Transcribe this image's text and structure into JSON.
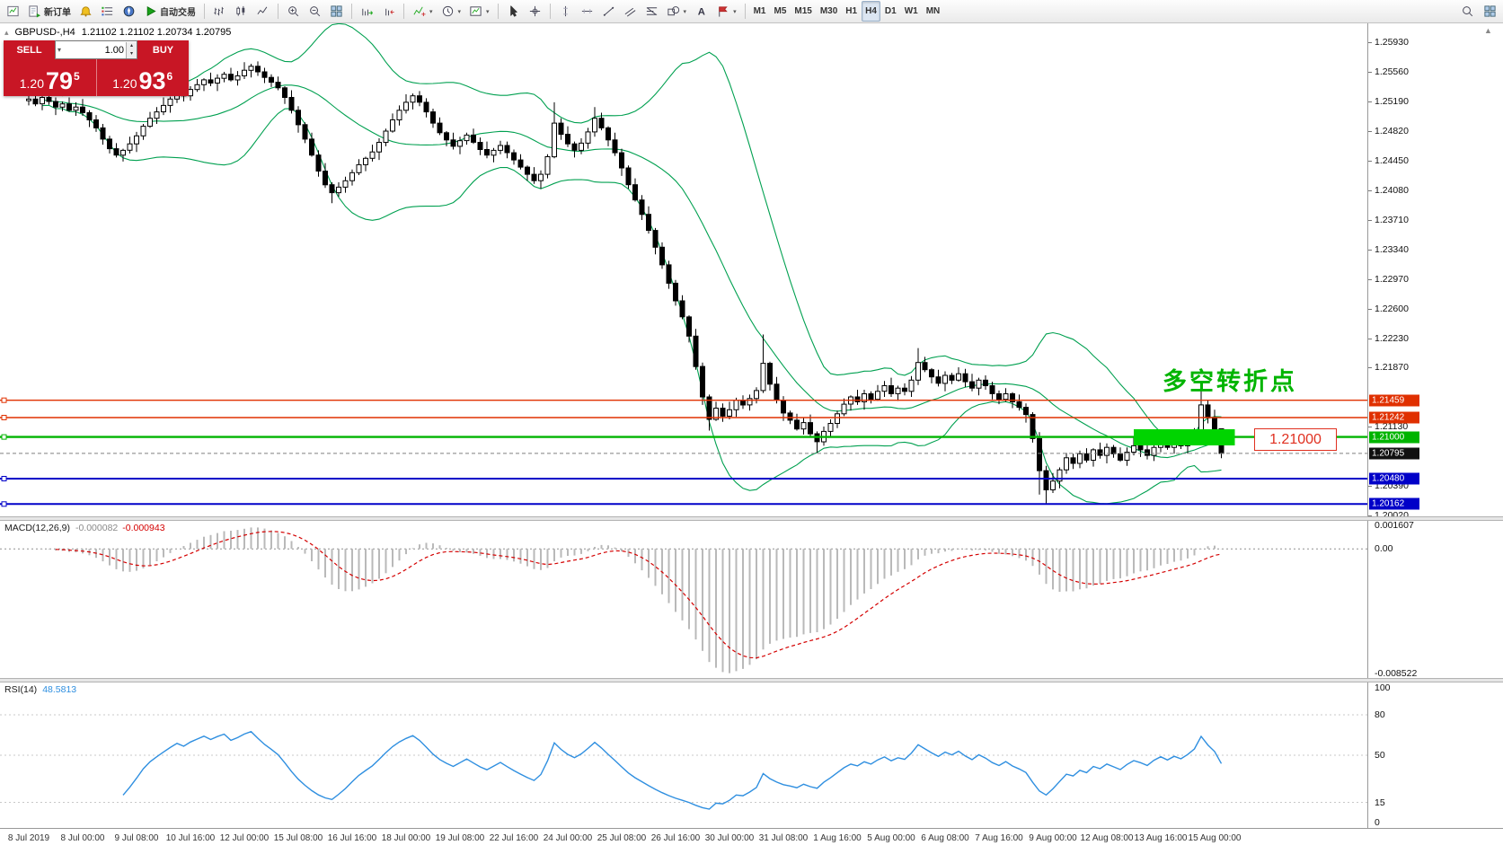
{
  "misc": {
    "caret": "▾",
    "spin_up": "▴",
    "spin_down": "▾",
    "scroll_arrow": "▲",
    "collapse": "▴"
  },
  "toolbar": {
    "groups": [
      [
        {
          "name": "chart-window",
          "icon": "chartwin"
        },
        {
          "name": "new-order",
          "icon": "neworder",
          "label": "新订单"
        },
        {
          "name": "alerts",
          "icon": "bell"
        },
        {
          "name": "market-watch",
          "icon": "marketwatch"
        },
        {
          "name": "navigator",
          "icon": "navigator"
        },
        {
          "name": "autotrading",
          "icon": "play",
          "label": "自动交易"
        }
      ],
      [
        {
          "name": "chart-bars",
          "icon": "bars"
        },
        {
          "name": "chart-candles",
          "icon": "candles"
        },
        {
          "name": "chart-line",
          "icon": "linechart"
        }
      ],
      [
        {
          "name": "zoom-in",
          "icon": "zoomin"
        },
        {
          "name": "zoom-out",
          "icon": "zoomout"
        },
        {
          "name": "tile-windows",
          "icon": "tile"
        }
      ],
      [
        {
          "name": "auto-scroll",
          "icon": "autoscroll"
        },
        {
          "name": "chart-shift",
          "icon": "shift"
        }
      ],
      [
        {
          "name": "indicators",
          "icon": "indicators",
          "caret": true
        },
        {
          "name": "periods",
          "icon": "clock",
          "caret": true
        },
        {
          "name": "templates",
          "icon": "template",
          "caret": true
        }
      ],
      [
        {
          "name": "cursor",
          "icon": "cursor"
        },
        {
          "name": "crosshair",
          "icon": "crosshair"
        }
      ],
      [
        {
          "name": "vertical-line",
          "icon": "vline"
        },
        {
          "name": "horizontal-line",
          "icon": "hline"
        },
        {
          "name": "trendline",
          "icon": "trendline"
        },
        {
          "name": "equidistant-channel",
          "icon": "channel"
        },
        {
          "name": "fibonacci",
          "icon": "fibo"
        },
        {
          "name": "shapes",
          "icon": "shapes",
          "caret": true
        },
        {
          "name": "text-label",
          "icon": "text"
        },
        {
          "name": "arrow-objects",
          "icon": "flag",
          "caret": true
        }
      ],
      [
        {
          "name": "timeframe-m1",
          "label": "M1"
        },
        {
          "name": "timeframe-m5",
          "label": "M5"
        },
        {
          "name": "timeframe-m15",
          "label": "M15"
        },
        {
          "name": "timeframe-m30",
          "label": "M30"
        },
        {
          "name": "timeframe-h1",
          "label": "H1"
        },
        {
          "name": "timeframe-h4",
          "label": "H4",
          "active": true
        },
        {
          "name": "timeframe-d1",
          "label": "D1"
        },
        {
          "name": "timeframe-w1",
          "label": "W1"
        },
        {
          "name": "timeframe-mn",
          "label": "MN"
        }
      ]
    ],
    "right": [
      {
        "name": "search",
        "icon": "search"
      },
      {
        "name": "window-list",
        "icon": "tile"
      }
    ]
  },
  "title": {
    "symbol_period": "GBPUSD-,H4",
    "ohlc": "1.21102 1.21102 1.20734 1.20795"
  },
  "one_click": {
    "sell_label": "SELL",
    "buy_label": "BUY",
    "volume": "1.00",
    "bid_main": "1.20",
    "bid_big": "79",
    "bid_sup": "5",
    "ask_main": "1.20",
    "ask_big": "93",
    "ask_sup": "6"
  },
  "annotations": {
    "turning_point": "多空转折点",
    "price_callout": "1.21000"
  },
  "chart_data": {
    "type": "candlestick",
    "symbol": "GBPUSD-",
    "timeframe": "H4",
    "ohlc_current": [
      1.21102,
      1.21102,
      1.20734,
      1.20795
    ],
    "ylim": [
      1.200088,
      1.261655
    ],
    "first_open": 1.252,
    "closes": [
      1.2522,
      1.2516,
      1.2524,
      1.2519,
      1.2512,
      1.2516,
      1.2508,
      1.2512,
      1.2505,
      1.2496,
      1.2486,
      1.2472,
      1.246,
      1.2452,
      1.2458,
      1.2466,
      1.2476,
      1.2488,
      1.2498,
      1.2506,
      1.2514,
      1.2522,
      1.253,
      1.2526,
      1.2534,
      1.254,
      1.2546,
      1.2542,
      1.2548,
      1.2553,
      1.2546,
      1.2551,
      1.2558,
      1.2563,
      1.2556,
      1.2549,
      1.2543,
      1.2536,
      1.2524,
      1.2508,
      1.249,
      1.2472,
      1.2452,
      1.2432,
      1.2415,
      1.2405,
      1.2412,
      1.242,
      1.243,
      1.244,
      1.2448,
      1.2456,
      1.2468,
      1.2482,
      1.2496,
      1.2508,
      1.2518,
      1.2526,
      1.2518,
      1.2506,
      1.2492,
      1.248,
      1.2471,
      1.2463,
      1.247,
      1.2477,
      1.2468,
      1.2459,
      1.2452,
      1.2458,
      1.2464,
      1.2455,
      1.2446,
      1.2437,
      1.2428,
      1.242,
      1.2428,
      1.245,
      1.2492,
      1.2478,
      1.2466,
      1.2458,
      1.2467,
      1.2481,
      1.2498,
      1.2486,
      1.2471,
      1.2455,
      1.2436,
      1.2415,
      1.2396,
      1.2378,
      1.2358,
      1.2337,
      1.2315,
      1.2292,
      1.227,
      1.225,
      1.2226,
      1.2188,
      1.215,
      1.2122,
      1.2136,
      1.2126,
      1.2134,
      1.2146,
      1.214,
      1.2148,
      1.2158,
      1.2192,
      1.2166,
      1.2146,
      1.213,
      1.2121,
      1.211,
      1.2118,
      1.2104,
      1.2094,
      1.2107,
      1.2117,
      1.2129,
      1.2141,
      1.215,
      1.2144,
      1.2154,
      1.2147,
      1.2157,
      1.2164,
      1.2154,
      1.2161,
      1.2157,
      1.2171,
      1.2193,
      1.2184,
      1.2175,
      1.2167,
      1.2177,
      1.2171,
      1.2179,
      1.2169,
      1.2161,
      1.2171,
      1.2164,
      1.2154,
      1.2147,
      1.2154,
      1.2144,
      1.2137,
      1.2128,
      1.2098,
      1.2058,
      1.2034,
      1.2045,
      1.2059,
      1.2074,
      1.2067,
      1.2079,
      1.2071,
      1.2084,
      1.2077,
      1.2087,
      1.2079,
      1.2071,
      1.2081,
      1.2089,
      1.2084,
      1.2077,
      1.2087,
      1.2094,
      1.2087,
      1.2094,
      1.2089,
      1.2097,
      1.2108,
      1.214,
      1.2124,
      1.21102,
      1.20795
    ],
    "wick_up_pips_cycle": [
      4,
      7,
      2,
      9,
      5,
      3,
      8,
      6,
      10,
      3,
      6,
      5
    ],
    "wick_down_pips_cycle": [
      6,
      3,
      8,
      4,
      10,
      5,
      2,
      7,
      4,
      9,
      5,
      7
    ],
    "bar_overrides": {
      "0": {
        "o": 1.252
      },
      "45": {
        "l": 1.2392
      },
      "78": {
        "h": 1.2518
      },
      "84": {
        "h": 1.2512
      },
      "101": {
        "l": 1.2108
      },
      "109": {
        "h": 1.2228
      },
      "117": {
        "l": 1.208
      },
      "132": {
        "h": 1.2211
      },
      "150": {
        "l": 1.2028
      },
      "151": {
        "l": 1.2016
      },
      "174": {
        "h": 1.2166
      },
      "177": {
        "o": 1.21102,
        "h": 1.21102,
        "l": 1.20734,
        "c": 1.20795
      }
    },
    "x_labels": [
      "8 Jul 2019",
      "8 Jul 00:00",
      "9 Jul 08:00",
      "10 Jul 16:00",
      "12 Jul 00:00",
      "15 Jul 08:00",
      "16 Jul 16:00",
      "18 Jul 00:00",
      "19 Jul 08:00",
      "22 Jul 16:00",
      "24 Jul 00:00",
      "25 Jul 08:00",
      "26 Jul 16:00",
      "30 Jul 00:00",
      "31 Jul 08:00",
      "1 Aug 16:00",
      "5 Aug 00:00",
      "6 Aug 08:00",
      "7 Aug 16:00",
      "9 Aug 00:00",
      "12 Aug 08:00",
      "13 Aug 16:00",
      "15 Aug 00:00"
    ],
    "x_label_step_bars": 8,
    "price_ticks": [
      1.2593,
      1.2556,
      1.2519,
      1.2482,
      1.2445,
      1.2408,
      1.2371,
      1.2334,
      1.2297,
      1.226,
      1.2223,
      1.2187,
      1.2113,
      1.2039,
      1.2002
    ],
    "levels": [
      {
        "value": 1.21459,
        "color": "#e03000",
        "width": 1.4
      },
      {
        "value": 1.21242,
        "color": "#e03000",
        "width": 1.4
      },
      {
        "value": 1.21,
        "color": "#00b400",
        "width": 2.4
      },
      {
        "value": 1.2048,
        "color": "#0000c8",
        "width": 2
      },
      {
        "value": 1.20162,
        "color": "#0000c8",
        "width": 2
      }
    ],
    "bid": {
      "value": 1.20795,
      "color": "#101010"
    },
    "zone": {
      "bar_start": 164,
      "bar_end": 179,
      "price_top": 1.21097,
      "price_bottom": 1.20895,
      "color": "#00d400"
    },
    "bollinger": {
      "period": 20,
      "deviations": 2,
      "color": "#00a050"
    },
    "indicators": {
      "macd": {
        "label": "MACD(12,26,9)",
        "value_main": "-0.000082",
        "value_signal": "-0.000943",
        "fast": 12,
        "slow": 26,
        "signal": 9,
        "ylim": [
          -0.008522,
          0.001607
        ],
        "ticks": [
          {
            "label": "0.001607",
            "value": 0.001607
          },
          {
            "label": "0.00",
            "value": 0
          },
          {
            "label": "-0.008522",
            "value": -0.008522
          }
        ],
        "hist_color": "#b9b9b9",
        "signal_color": "#d40000"
      },
      "rsi": {
        "label": "RSI(14)",
        "value": "48.5813",
        "period": 14,
        "ylim": [
          0,
          100
        ],
        "levels": [
          80,
          50,
          15
        ],
        "ticks": [
          {
            "label": "100",
            "value": 100
          },
          {
            "label": "80",
            "value": 80
          },
          {
            "label": "50",
            "value": 50
          },
          {
            "label": "15",
            "value": 15
          },
          {
            "label": "0",
            "value": 0
          }
        ],
        "line_color": "#2f8fe0"
      }
    }
  }
}
